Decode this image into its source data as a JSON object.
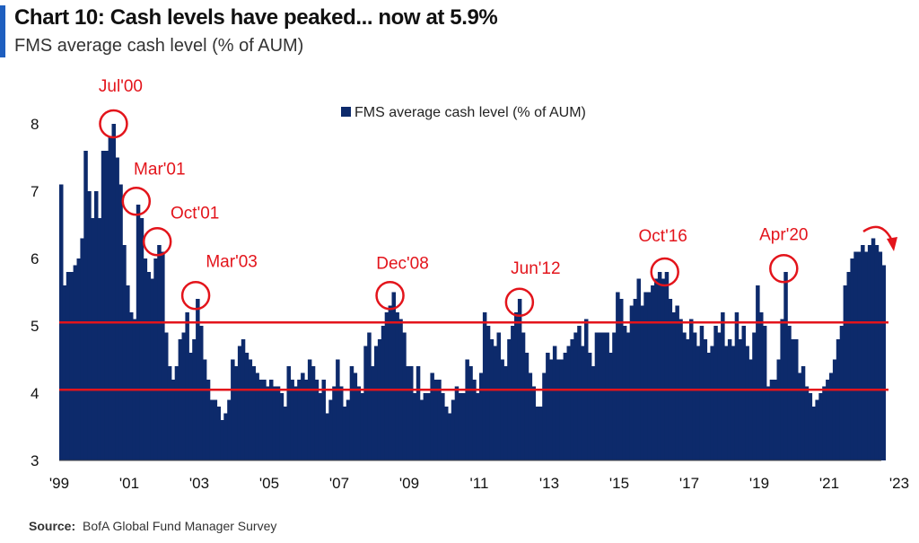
{
  "header": {
    "title": "Chart 10: Cash levels have peaked... now at 5.9%",
    "subtitle": "FMS average cash level (% of AUM)"
  },
  "footer": {
    "source_label": "Source:",
    "source_text": "BofA Global Fund Manager Survey"
  },
  "colors": {
    "bars": "#0d2a6b",
    "annotation": "#e3141b",
    "accent": "#1f5fbf"
  },
  "chart_data": {
    "type": "bar",
    "ylim": [
      3,
      8.3
    ],
    "yticks": [
      3,
      4,
      5,
      6,
      7,
      8
    ],
    "xlim": [
      1999.0,
      2023.1
    ],
    "xticks": [
      {
        "label": "'99",
        "x": 1999
      },
      {
        "label": "'01",
        "x": 2001
      },
      {
        "label": "'03",
        "x": 2003
      },
      {
        "label": "'05",
        "x": 2005
      },
      {
        "label": "'07",
        "x": 2007
      },
      {
        "label": "'09",
        "x": 2009
      },
      {
        "label": "'11",
        "x": 2011
      },
      {
        "label": "'13",
        "x": 2013
      },
      {
        "label": "'15",
        "x": 2015
      },
      {
        "label": "'17",
        "x": 2017
      },
      {
        "label": "'19",
        "x": 2019
      },
      {
        "label": "'21",
        "x": 2021
      },
      {
        "label": "'23",
        "x": 2023
      }
    ],
    "series": [
      {
        "name": "FMS average cash level (% of AUM)",
        "legend_position": "top-center",
        "points": [
          [
            1999.0,
            7.1
          ],
          [
            1999.1,
            5.6
          ],
          [
            1999.2,
            5.8
          ],
          [
            1999.3,
            5.8
          ],
          [
            1999.4,
            5.9
          ],
          [
            1999.5,
            6.0
          ],
          [
            1999.6,
            6.3
          ],
          [
            1999.7,
            7.6
          ],
          [
            1999.8,
            7.0
          ],
          [
            1999.9,
            6.6
          ],
          [
            2000.0,
            7.0
          ],
          [
            2000.1,
            6.6
          ],
          [
            2000.2,
            7.6
          ],
          [
            2000.3,
            7.6
          ],
          [
            2000.4,
            7.8
          ],
          [
            2000.5,
            8.0
          ],
          [
            2000.6,
            7.5
          ],
          [
            2000.7,
            7.1
          ],
          [
            2000.8,
            6.2
          ],
          [
            2000.9,
            5.6
          ],
          [
            2001.0,
            5.2
          ],
          [
            2001.1,
            5.1
          ],
          [
            2001.2,
            6.8
          ],
          [
            2001.3,
            6.6
          ],
          [
            2001.4,
            6.0
          ],
          [
            2001.5,
            5.8
          ],
          [
            2001.6,
            5.7
          ],
          [
            2001.7,
            6.0
          ],
          [
            2001.8,
            6.2
          ],
          [
            2001.9,
            6.1
          ],
          [
            2002.0,
            4.9
          ],
          [
            2002.1,
            4.4
          ],
          [
            2002.2,
            4.2
          ],
          [
            2002.3,
            4.4
          ],
          [
            2002.4,
            4.8
          ],
          [
            2002.5,
            4.9
          ],
          [
            2002.6,
            5.2
          ],
          [
            2002.7,
            4.6
          ],
          [
            2002.8,
            4.8
          ],
          [
            2002.9,
            5.4
          ],
          [
            2003.0,
            5.0
          ],
          [
            2003.1,
            4.5
          ],
          [
            2003.2,
            4.2
          ],
          [
            2003.3,
            3.9
          ],
          [
            2003.4,
            3.9
          ],
          [
            2003.5,
            3.8
          ],
          [
            2003.6,
            3.6
          ],
          [
            2003.7,
            3.7
          ],
          [
            2003.8,
            3.9
          ],
          [
            2003.9,
            4.5
          ],
          [
            2004.0,
            4.4
          ],
          [
            2004.1,
            4.7
          ],
          [
            2004.2,
            4.8
          ],
          [
            2004.3,
            4.6
          ],
          [
            2004.4,
            4.5
          ],
          [
            2004.5,
            4.4
          ],
          [
            2004.6,
            4.3
          ],
          [
            2004.7,
            4.2
          ],
          [
            2004.8,
            4.2
          ],
          [
            2004.9,
            4.1
          ],
          [
            2005.0,
            4.2
          ],
          [
            2005.1,
            4.1
          ],
          [
            2005.2,
            4.1
          ],
          [
            2005.3,
            4.0
          ],
          [
            2005.4,
            3.8
          ],
          [
            2005.5,
            4.4
          ],
          [
            2005.6,
            4.2
          ],
          [
            2005.7,
            4.1
          ],
          [
            2005.8,
            4.2
          ],
          [
            2005.9,
            4.3
          ],
          [
            2006.0,
            4.2
          ],
          [
            2006.1,
            4.5
          ],
          [
            2006.2,
            4.4
          ],
          [
            2006.3,
            4.2
          ],
          [
            2006.4,
            4.0
          ],
          [
            2006.5,
            4.2
          ],
          [
            2006.6,
            3.7
          ],
          [
            2006.7,
            3.9
          ],
          [
            2006.8,
            4.1
          ],
          [
            2006.9,
            4.5
          ],
          [
            2007.0,
            4.1
          ],
          [
            2007.1,
            3.8
          ],
          [
            2007.2,
            3.9
          ],
          [
            2007.3,
            4.4
          ],
          [
            2007.4,
            4.3
          ],
          [
            2007.5,
            4.1
          ],
          [
            2007.6,
            4.0
          ],
          [
            2007.7,
            4.7
          ],
          [
            2007.8,
            4.9
          ],
          [
            2007.9,
            4.4
          ],
          [
            2008.0,
            4.7
          ],
          [
            2008.1,
            4.8
          ],
          [
            2008.2,
            5.0
          ],
          [
            2008.3,
            5.2
          ],
          [
            2008.4,
            5.3
          ],
          [
            2008.5,
            5.5
          ],
          [
            2008.6,
            5.2
          ],
          [
            2008.7,
            5.1
          ],
          [
            2008.8,
            4.9
          ],
          [
            2008.9,
            4.4
          ],
          [
            2009.0,
            4.4
          ],
          [
            2009.1,
            4.0
          ],
          [
            2009.2,
            4.4
          ],
          [
            2009.3,
            3.9
          ],
          [
            2009.4,
            4.0
          ],
          [
            2009.5,
            4.0
          ],
          [
            2009.6,
            4.3
          ],
          [
            2009.7,
            4.2
          ],
          [
            2009.8,
            4.2
          ],
          [
            2009.9,
            4.0
          ],
          [
            2010.0,
            3.8
          ],
          [
            2010.1,
            3.7
          ],
          [
            2010.2,
            3.9
          ],
          [
            2010.3,
            4.1
          ],
          [
            2010.4,
            4.0
          ],
          [
            2010.5,
            4.0
          ],
          [
            2010.6,
            4.5
          ],
          [
            2010.7,
            4.4
          ],
          [
            2010.8,
            4.2
          ],
          [
            2010.9,
            4.0
          ],
          [
            2011.0,
            4.3
          ],
          [
            2011.1,
            5.2
          ],
          [
            2011.2,
            5.0
          ],
          [
            2011.3,
            4.8
          ],
          [
            2011.4,
            4.7
          ],
          [
            2011.5,
            4.9
          ],
          [
            2011.6,
            4.5
          ],
          [
            2011.7,
            4.4
          ],
          [
            2011.8,
            4.8
          ],
          [
            2011.9,
            5.0
          ],
          [
            2012.0,
            5.2
          ],
          [
            2012.1,
            5.4
          ],
          [
            2012.2,
            4.9
          ],
          [
            2012.3,
            4.6
          ],
          [
            2012.4,
            4.3
          ],
          [
            2012.5,
            4.1
          ],
          [
            2012.6,
            3.8
          ],
          [
            2012.7,
            3.8
          ],
          [
            2012.8,
            4.3
          ],
          [
            2012.9,
            4.6
          ],
          [
            2013.0,
            4.5
          ],
          [
            2013.1,
            4.7
          ],
          [
            2013.2,
            4.5
          ],
          [
            2013.3,
            4.5
          ],
          [
            2013.4,
            4.6
          ],
          [
            2013.5,
            4.7
          ],
          [
            2013.6,
            4.8
          ],
          [
            2013.7,
            4.9
          ],
          [
            2013.8,
            5.0
          ],
          [
            2013.9,
            4.7
          ],
          [
            2014.0,
            5.1
          ],
          [
            2014.1,
            4.6
          ],
          [
            2014.2,
            4.4
          ],
          [
            2014.3,
            4.9
          ],
          [
            2014.4,
            4.9
          ],
          [
            2014.5,
            4.9
          ],
          [
            2014.6,
            4.9
          ],
          [
            2014.7,
            4.6
          ],
          [
            2014.8,
            4.9
          ],
          [
            2014.9,
            5.5
          ],
          [
            2015.0,
            5.4
          ],
          [
            2015.1,
            5.0
          ],
          [
            2015.2,
            4.9
          ],
          [
            2015.3,
            5.3
          ],
          [
            2015.4,
            5.4
          ],
          [
            2015.5,
            5.7
          ],
          [
            2015.6,
            5.3
          ],
          [
            2015.7,
            5.5
          ],
          [
            2015.8,
            5.5
          ],
          [
            2015.9,
            5.6
          ],
          [
            2016.0,
            5.7
          ],
          [
            2016.1,
            5.8
          ],
          [
            2016.2,
            5.7
          ],
          [
            2016.3,
            5.8
          ],
          [
            2016.4,
            5.4
          ],
          [
            2016.5,
            5.2
          ],
          [
            2016.6,
            5.3
          ],
          [
            2016.7,
            5.1
          ],
          [
            2016.8,
            4.9
          ],
          [
            2016.9,
            4.8
          ],
          [
            2017.0,
            5.1
          ],
          [
            2017.1,
            4.9
          ],
          [
            2017.2,
            4.7
          ],
          [
            2017.3,
            5.0
          ],
          [
            2017.4,
            4.8
          ],
          [
            2017.5,
            4.6
          ],
          [
            2017.6,
            4.7
          ],
          [
            2017.7,
            5.0
          ],
          [
            2017.8,
            4.9
          ],
          [
            2017.9,
            5.2
          ],
          [
            2018.0,
            4.7
          ],
          [
            2018.1,
            4.8
          ],
          [
            2018.2,
            4.7
          ],
          [
            2018.3,
            5.2
          ],
          [
            2018.4,
            4.8
          ],
          [
            2018.5,
            5.0
          ],
          [
            2018.6,
            4.7
          ],
          [
            2018.7,
            4.5
          ],
          [
            2018.8,
            4.9
          ],
          [
            2018.9,
            5.6
          ],
          [
            2019.0,
            5.2
          ],
          [
            2019.1,
            5.0
          ],
          [
            2019.2,
            4.1
          ],
          [
            2019.3,
            4.2
          ],
          [
            2019.4,
            4.2
          ],
          [
            2019.5,
            4.5
          ],
          [
            2019.6,
            5.1
          ],
          [
            2019.7,
            5.8
          ],
          [
            2019.8,
            5.0
          ],
          [
            2019.9,
            4.8
          ],
          [
            2020.0,
            4.8
          ],
          [
            2020.1,
            4.3
          ],
          [
            2020.2,
            4.4
          ],
          [
            2020.3,
            4.1
          ],
          [
            2020.4,
            4.0
          ],
          [
            2020.5,
            3.8
          ],
          [
            2020.6,
            3.9
          ],
          [
            2020.7,
            4.0
          ],
          [
            2020.8,
            4.1
          ],
          [
            2020.9,
            4.2
          ],
          [
            2021.0,
            4.3
          ],
          [
            2021.1,
            4.5
          ],
          [
            2021.2,
            4.8
          ],
          [
            2021.3,
            5.0
          ],
          [
            2021.4,
            5.6
          ],
          [
            2021.5,
            5.8
          ],
          [
            2021.6,
            6.0
          ],
          [
            2021.7,
            6.1
          ],
          [
            2021.8,
            6.1
          ],
          [
            2021.9,
            6.2
          ],
          [
            2022.0,
            6.1
          ],
          [
            2022.1,
            6.2
          ],
          [
            2022.2,
            6.3
          ],
          [
            2022.3,
            6.2
          ],
          [
            2022.4,
            6.1
          ],
          [
            2022.5,
            5.9
          ]
        ]
      }
    ],
    "reference_lines": [
      5.05,
      4.05
    ],
    "annotations": [
      {
        "label": "Jul'00",
        "x": 2000.55,
        "y": 8.0
      },
      {
        "label": "Mar'01",
        "x": 2001.2,
        "y": 6.85
      },
      {
        "label": "Oct'01",
        "x": 2001.8,
        "y": 6.25
      },
      {
        "label": "Mar'03",
        "x": 2002.9,
        "y": 5.45
      },
      {
        "label": "Dec'08",
        "x": 2008.45,
        "y": 5.45
      },
      {
        "label": "Jun'12",
        "x": 2012.15,
        "y": 5.35
      },
      {
        "label": "Oct'16",
        "x": 2016.3,
        "y": 5.8
      },
      {
        "label": "Apr'20",
        "x": 2019.7,
        "y": 5.85
      }
    ],
    "arrow_hint": "red curved arrow at latest peak pointing down"
  }
}
